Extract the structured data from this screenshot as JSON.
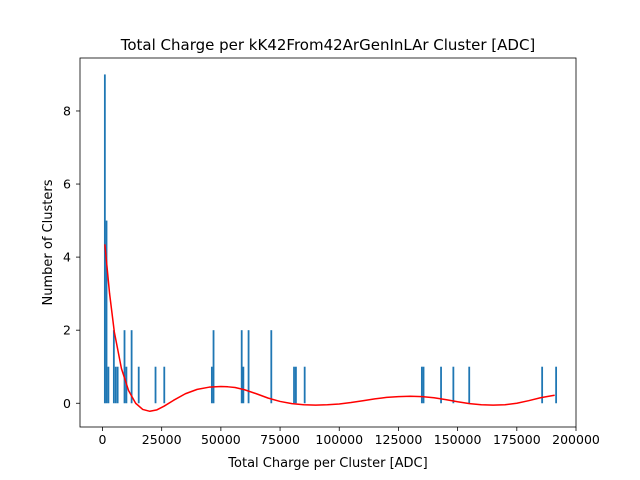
{
  "chart_data": {
    "type": "bar",
    "title": "Total Charge per kK42From42ArGenInLAr Cluster [ADC]",
    "xlabel": "Total Charge per Cluster [ADC]",
    "ylabel": "Number of Clusters",
    "xlim": [
      -9500,
      200000
    ],
    "ylim": [
      -0.65,
      9.45
    ],
    "x_ticks": [
      0,
      25000,
      50000,
      75000,
      100000,
      125000,
      150000,
      175000,
      200000
    ],
    "x_tick_labels": [
      "0",
      "25000",
      "50000",
      "75000",
      "100000",
      "125000",
      "150000",
      "175000",
      "200000"
    ],
    "y_ticks": [
      0,
      2,
      4,
      6,
      8
    ],
    "y_tick_labels": [
      "0",
      "2",
      "4",
      "6",
      "8"
    ],
    "bar_width": 760,
    "bar_color": "#1f77b4",
    "series": [
      {
        "type": "bar",
        "bins": [
          {
            "x": 1000,
            "count": 9
          },
          {
            "x": 1700,
            "count": 5
          },
          {
            "x": 2500,
            "count": 1
          },
          {
            "x": 4800,
            "count": 2
          },
          {
            "x": 5600,
            "count": 1
          },
          {
            "x": 6400,
            "count": 1
          },
          {
            "x": 9300,
            "count": 2
          },
          {
            "x": 10100,
            "count": 1
          },
          {
            "x": 12300,
            "count": 2
          },
          {
            "x": 15300,
            "count": 1
          },
          {
            "x": 22400,
            "count": 1
          },
          {
            "x": 26100,
            "count": 1
          },
          {
            "x": 46200,
            "count": 1
          },
          {
            "x": 46900,
            "count": 2
          },
          {
            "x": 58800,
            "count": 2
          },
          {
            "x": 59500,
            "count": 1
          },
          {
            "x": 61700,
            "count": 2
          },
          {
            "x": 71300,
            "count": 2
          },
          {
            "x": 80900,
            "count": 1
          },
          {
            "x": 81700,
            "count": 1
          },
          {
            "x": 85400,
            "count": 1
          },
          {
            "x": 134900,
            "count": 1
          },
          {
            "x": 135600,
            "count": 1
          },
          {
            "x": 143000,
            "count": 1
          },
          {
            "x": 148200,
            "count": 1
          },
          {
            "x": 154900,
            "count": 1
          },
          {
            "x": 185700,
            "count": 1
          },
          {
            "x": 191600,
            "count": 1
          }
        ]
      },
      {
        "type": "line",
        "color": "#ff0000",
        "x": [
          1000,
          3000,
          5000,
          8000,
          11000,
          14000,
          17000,
          20000,
          23000,
          26000,
          30000,
          35000,
          40000,
          45000,
          50000,
          53000,
          56000,
          60000,
          65000,
          70000,
          75000,
          80000,
          85000,
          90000,
          95000,
          100000,
          105000,
          110000,
          115000,
          120000,
          125000,
          130000,
          135000,
          140000,
          145000,
          150000,
          155000,
          160000,
          165000,
          170000,
          175000,
          180000,
          185000,
          190000,
          191000
        ],
        "y": [
          4.35,
          3.0,
          1.95,
          0.95,
          0.35,
          0.0,
          -0.17,
          -0.22,
          -0.18,
          -0.08,
          0.08,
          0.26,
          0.38,
          0.44,
          0.46,
          0.45,
          0.43,
          0.37,
          0.26,
          0.14,
          0.05,
          -0.01,
          -0.04,
          -0.05,
          -0.04,
          -0.02,
          0.02,
          0.07,
          0.12,
          0.16,
          0.18,
          0.19,
          0.18,
          0.15,
          0.1,
          0.04,
          -0.01,
          -0.04,
          -0.05,
          -0.04,
          0.0,
          0.07,
          0.15,
          0.21,
          0.22
        ]
      }
    ],
    "grid": false,
    "legend": "none"
  }
}
